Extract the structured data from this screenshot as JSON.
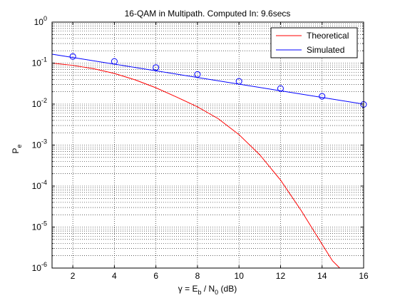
{
  "chart_data": {
    "type": "line",
    "title": "16-QAM in Multipath. Computed In: 9.6secs",
    "xlabel": {
      "pre": "γ = E",
      "sub1": "b",
      "mid": " / N",
      "sub2": "0",
      "post": " (dB)"
    },
    "ylabel": {
      "main": "P",
      "sub": "e"
    },
    "xlim": [
      1,
      16
    ],
    "ylim": [
      1e-06,
      1
    ],
    "yscale": "log",
    "grid": true,
    "minor_grid": true,
    "legend_position": "top-right",
    "x_ticks": [
      2,
      4,
      6,
      8,
      10,
      12,
      14,
      16
    ],
    "y_ticks": [
      {
        "value": 1e-06,
        "base": "10",
        "exp": "-6"
      },
      {
        "value": 1e-05,
        "base": "10",
        "exp": "-5"
      },
      {
        "value": 0.0001,
        "base": "10",
        "exp": "-4"
      },
      {
        "value": 0.001,
        "base": "10",
        "exp": "-3"
      },
      {
        "value": 0.01,
        "base": "10",
        "exp": "-2"
      },
      {
        "value": 0.1,
        "base": "10",
        "exp": "-1"
      },
      {
        "value": 1,
        "base": "10",
        "exp": "0"
      }
    ],
    "series": [
      {
        "name": "Theoretical",
        "color": "#ff0000",
        "marker": "none",
        "x": [
          1,
          2,
          3,
          4,
          5,
          6,
          7,
          8,
          9,
          10,
          11,
          12,
          13,
          14,
          14.5,
          14.85
        ],
        "y": [
          0.1,
          0.088,
          0.073,
          0.056,
          0.039,
          0.025,
          0.0148,
          0.0086,
          0.0044,
          0.0018,
          0.00058,
          0.00014,
          2.5e-05,
          3.8e-06,
          1.5e-06,
          1e-06
        ]
      },
      {
        "name": "Simulated",
        "color": "#0000ff",
        "marker": "circle",
        "x": [
          1,
          16
        ],
        "y": [
          0.165,
          0.01
        ],
        "marker_x": [
          2,
          4,
          6,
          8,
          10,
          12,
          14,
          16
        ],
        "marker_y": [
          0.145,
          0.11,
          0.078,
          0.053,
          0.036,
          0.024,
          0.0155,
          0.0098
        ]
      }
    ]
  }
}
